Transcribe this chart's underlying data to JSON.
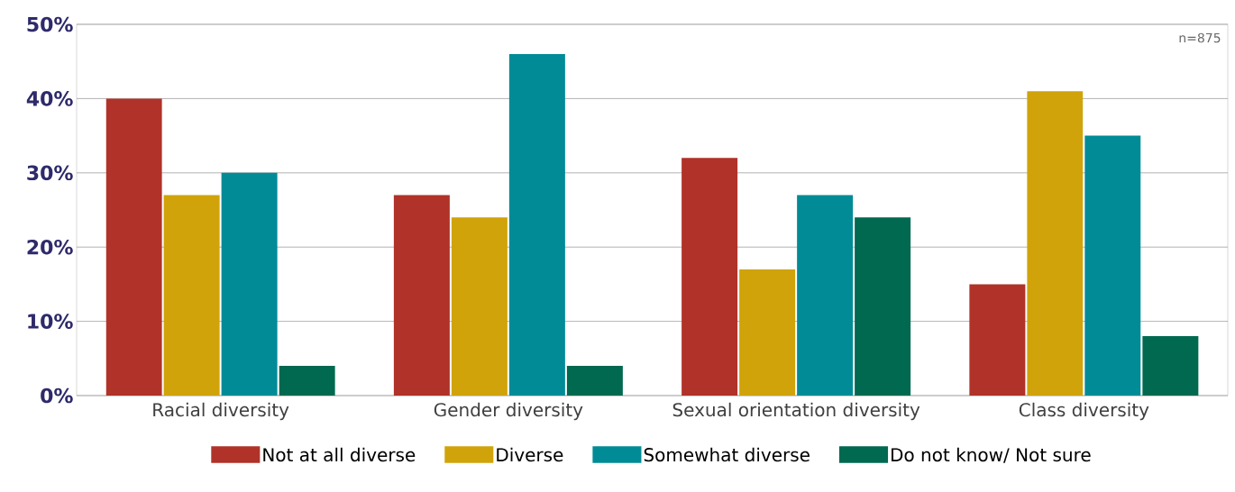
{
  "chart_data": {
    "type": "bar",
    "categories": [
      "Racial diversity",
      "Gender diversity",
      "Sexual orientation diversity",
      "Class diversity"
    ],
    "series": [
      {
        "name": "Not at all diverse",
        "color": "#b03228",
        "values": [
          40,
          27,
          32,
          15
        ]
      },
      {
        "name": "Diverse",
        "color": "#d0a30a",
        "values": [
          27,
          24,
          17,
          41
        ]
      },
      {
        "name": "Somewhat diverse",
        "color": "#008b96",
        "values": [
          30,
          46,
          27,
          35
        ]
      },
      {
        "name": "Do not know/ Not sure",
        "color": "#006950",
        "values": [
          4,
          4,
          24,
          8
        ]
      }
    ],
    "ylim": [
      0,
      50
    ],
    "yticks": [
      {
        "value": 0,
        "label": "0%"
      },
      {
        "value": 10,
        "label": "10%"
      },
      {
        "value": 20,
        "label": "20%"
      },
      {
        "value": 30,
        "label": "30%"
      },
      {
        "value": 40,
        "label": "40%"
      },
      {
        "value": 50,
        "label": "50%"
      }
    ],
    "grid": "y",
    "legend": "bottom",
    "annotations": [
      "n=875"
    ]
  }
}
